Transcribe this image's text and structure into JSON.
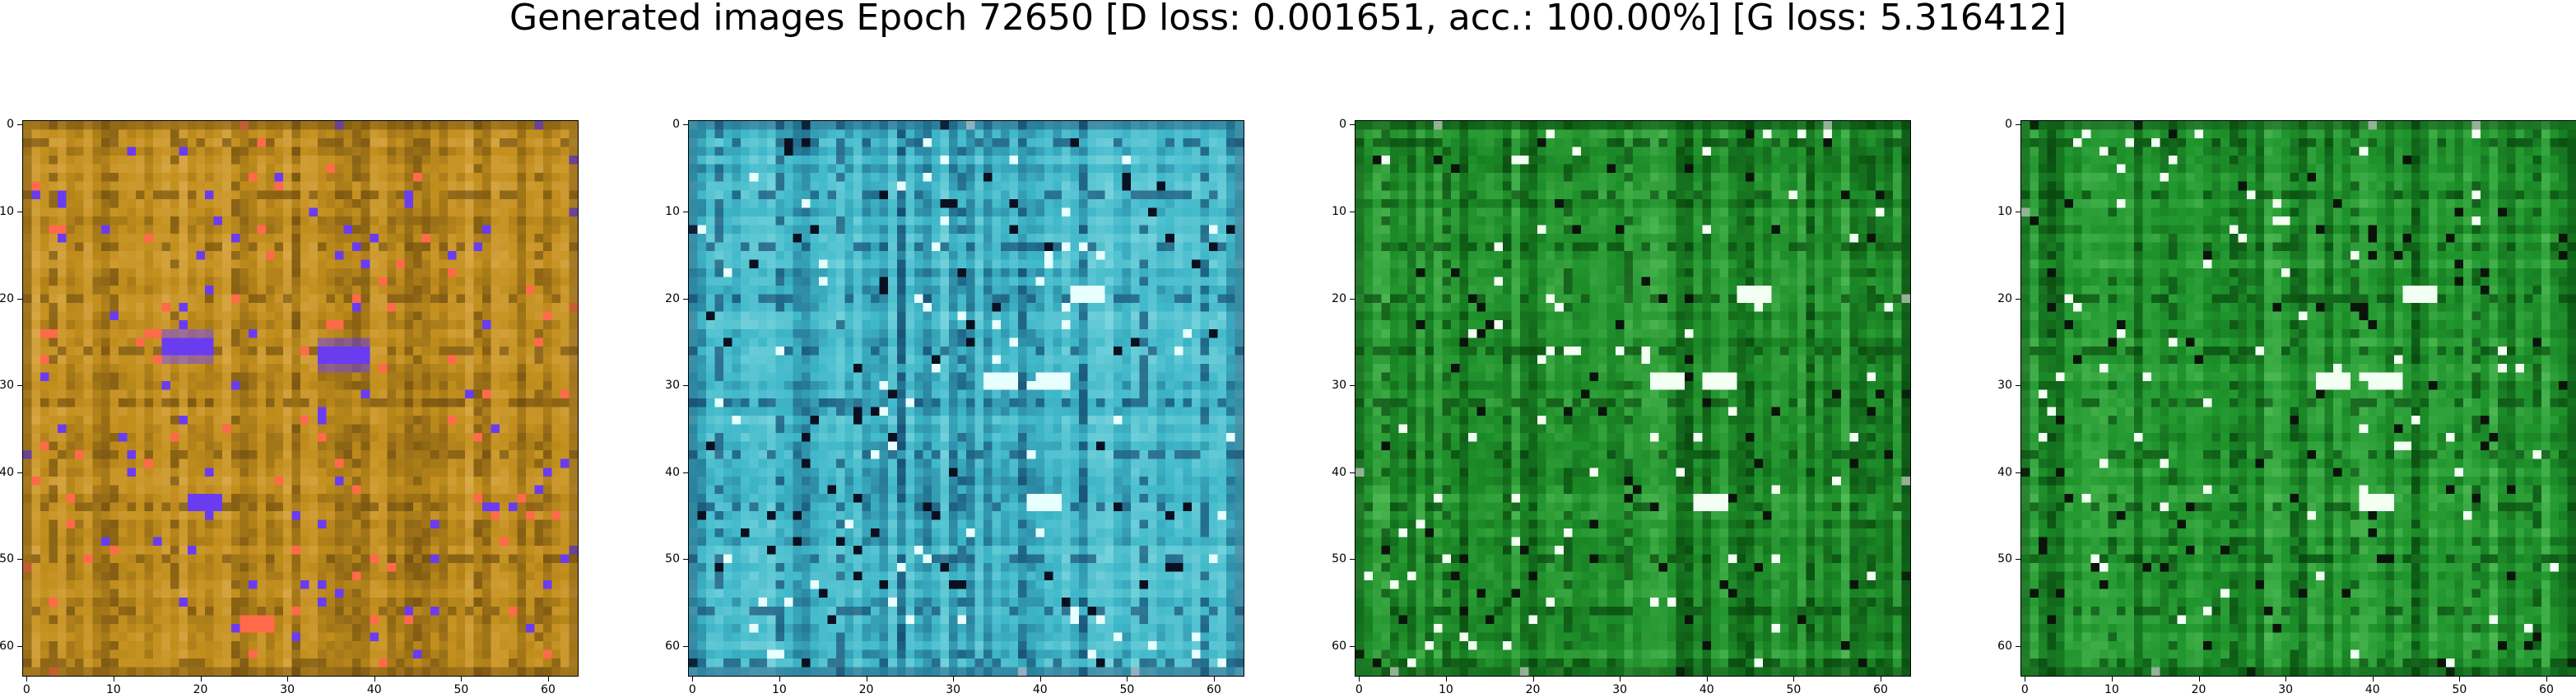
{
  "title": "Generated images Epoch 72650 [D loss: 0.001651, acc.: 100.00%] [G loss: 5.316412]",
  "axes": {
    "x_ticks": [
      "0",
      "10",
      "20",
      "30",
      "40",
      "50",
      "60"
    ],
    "y_ticks": [
      "0",
      "10",
      "20",
      "30",
      "40",
      "50",
      "60"
    ],
    "range": [
      0,
      64
    ]
  },
  "panels": [
    {
      "name": "generated-image-1",
      "palette": {
        "base": "#c28f1d",
        "dark": "#6b4a10",
        "light": "#f0c070",
        "accent": "#6a3cf0",
        "accent2": "#ff6a4a"
      }
    },
    {
      "name": "generated-image-2",
      "palette": {
        "base": "#3fb8c9",
        "dark": "#0f3d66",
        "light": "#b6f2f2",
        "accent": "#0a1020",
        "accent2": "#e8ffff"
      }
    },
    {
      "name": "generated-image-3",
      "palette": {
        "base": "#1e8f2a",
        "dark": "#063d0a",
        "light": "#7be07a",
        "accent": "#0a140a",
        "accent2": "#f2fff2"
      }
    },
    {
      "name": "generated-image-4",
      "palette": {
        "base": "#1f942c",
        "dark": "#063f0c",
        "light": "#80e27f",
        "accent": "#0a140a",
        "accent2": "#f2fff2"
      }
    }
  ]
}
